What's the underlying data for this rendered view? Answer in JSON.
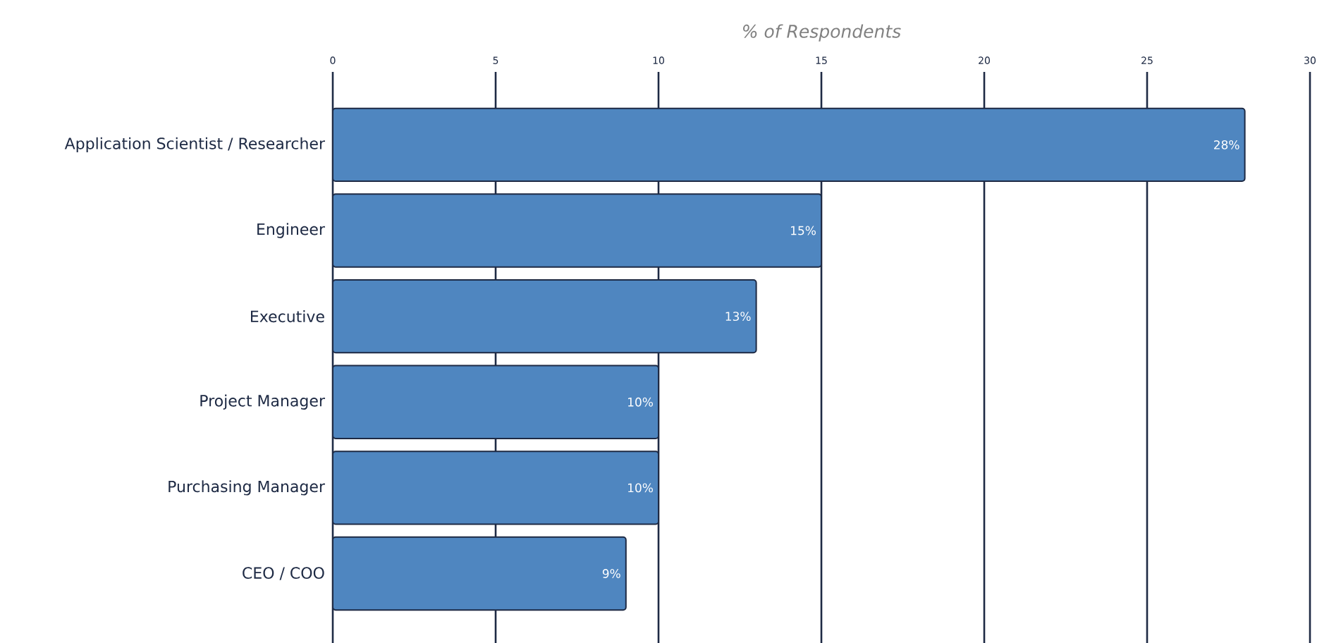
{
  "chart_data": {
    "type": "bar",
    "orientation": "horizontal",
    "xlabel": "% of Respondents",
    "categories": [
      "Application Scientist / Researcher",
      "Engineer",
      "Executive",
      "Project Manager",
      "Purchasing Manager",
      "CEO / COO"
    ],
    "values": [
      28,
      15,
      13,
      10,
      10,
      9
    ],
    "value_labels": [
      "28%",
      "15%",
      "13%",
      "10%",
      "10%",
      "9%"
    ],
    "color": "#4f86c0",
    "xlim": [
      0,
      30
    ],
    "xticks": [
      0,
      5,
      10,
      15,
      20,
      25,
      30
    ],
    "grid": "x"
  }
}
